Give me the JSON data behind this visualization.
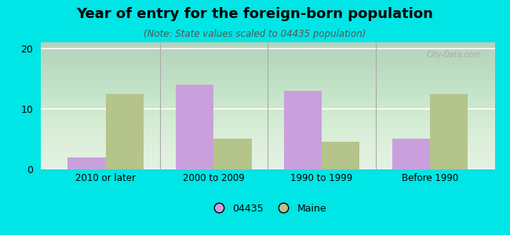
{
  "title": "Year of entry for the foreign-born population",
  "subtitle": "(Note: State values scaled to 04435 population)",
  "categories": [
    "2010 or later",
    "2000 to 2009",
    "1990 to 1999",
    "Before 1990"
  ],
  "values_04435": [
    2,
    14,
    13,
    5
  ],
  "values_maine": [
    12.5,
    5,
    4.5,
    12.5
  ],
  "color_04435": "#c9a0dc",
  "color_maine": "#b5c48a",
  "background_color": "#00e5e5",
  "ylim": [
    0,
    21
  ],
  "yticks": [
    0,
    10,
    20
  ],
  "bar_width": 0.35,
  "legend_labels": [
    "04435",
    "Maine"
  ]
}
